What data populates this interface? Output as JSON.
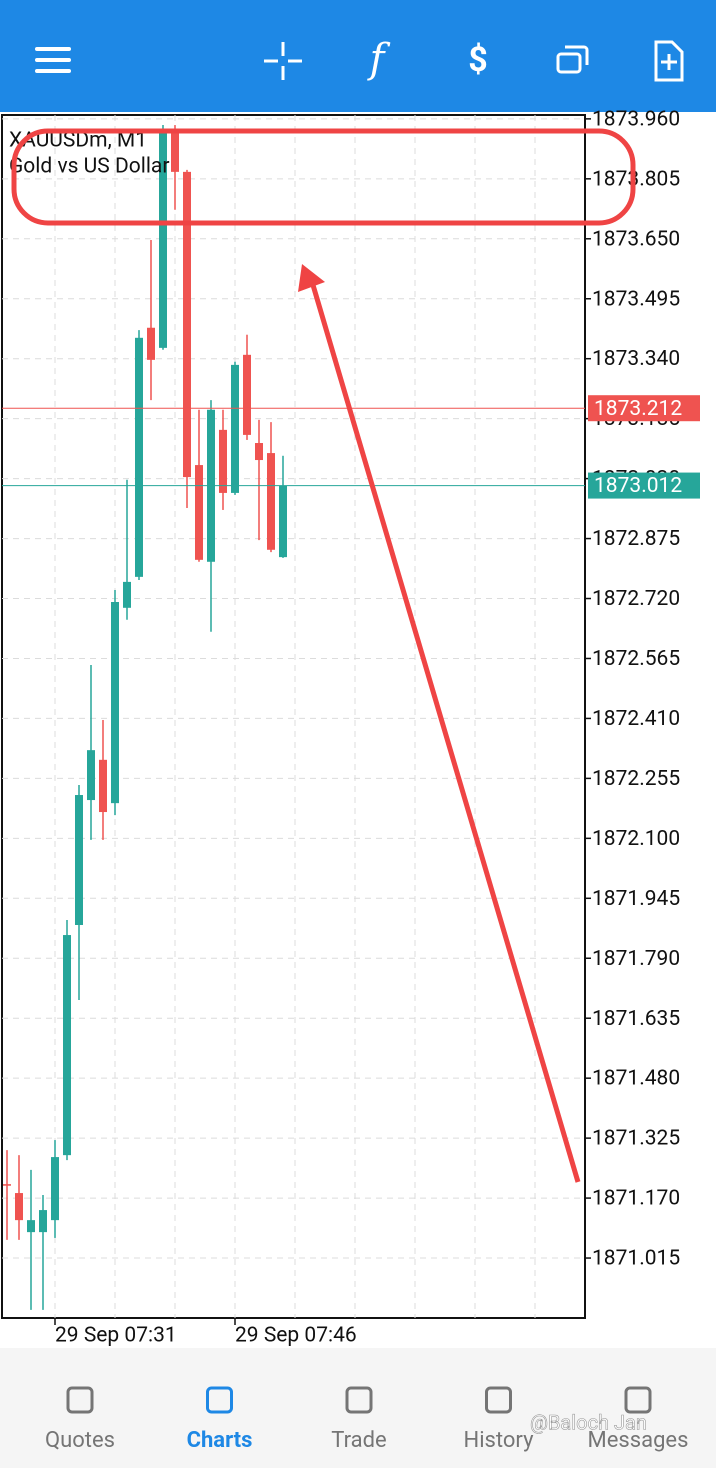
{
  "chart_data": {
    "type": "candlestick",
    "title": "XAUUSDm, M1",
    "subtitle": "Gold vs US Dollar",
    "categories": [
      null,
      null,
      null,
      null,
      "29 Sep 07:31",
      null,
      null,
      null,
      null,
      null,
      null,
      null,
      null,
      null,
      null,
      null,
      null,
      null,
      null,
      "29 Sep 07:46",
      null,
      null,
      null,
      null
    ],
    "open": [
      1871.206,
      1871.183,
      1871.082,
      1871.082,
      1871.113,
      1871.281,
      1871.876,
      1872.199,
      1872.303,
      1872.191,
      1872.696,
      1872.776,
      1873.42,
      1873.368,
      1873.932,
      1873.823,
      1873.065,
      1872.815,
      1873.156,
      1872.993,
      1873.35,
      1873.122,
      1873.096,
      1872.827
    ],
    "high": [
      1871.294,
      1871.281,
      1871.243,
      1871.178,
      1871.32,
      1871.889,
      1872.238,
      1872.548,
      1872.406,
      1872.742,
      1873.027,
      1873.414,
      1873.647,
      1873.944,
      1873.944,
      1873.828,
      1873.208,
      1873.233,
      1873.208,
      1873.332,
      1873.402,
      1873.182,
      1873.176,
      1873.089
    ],
    "low": [
      1871.062,
      1871.062,
      1870.881,
      1870.881,
      1871.067,
      1871.268,
      1871.682,
      1872.096,
      1872.096,
      1872.16,
      1872.665,
      1872.768,
      1873.233,
      1873.363,
      1873.725,
      1872.954,
      1872.815,
      1872.634,
      1872.949,
      1872.988,
      1873.13,
      1872.871,
      1872.84,
      1872.825
    ],
    "close": [
      1871.202,
      1871.113,
      1871.113,
      1871.139,
      1871.276,
      1871.85,
      1872.212,
      1872.328,
      1872.168,
      1872.711,
      1872.763,
      1873.394,
      1873.337,
      1873.932,
      1873.823,
      1873.034,
      1872.82,
      1873.208,
      1872.993,
      1873.324,
      1873.143,
      1873.078,
      1872.846,
      1873.012
    ],
    "up_color": "#26a69a",
    "down_color": "#ef5350",
    "ylim": [
      1870.86,
      1873.97
    ],
    "yticks": [
      {
        "value": 1873.96,
        "label": "1873.960"
      },
      {
        "value": 1873.805,
        "label": "1873.805"
      },
      {
        "value": 1873.65,
        "label": "1873.650"
      },
      {
        "value": 1873.495,
        "label": "1873.495"
      },
      {
        "value": 1873.34,
        "label": "1873.340"
      },
      {
        "value": 1873.185,
        "label": "1873.185"
      },
      {
        "value": 1873.03,
        "label": "1873.030"
      },
      {
        "value": 1872.875,
        "label": "1872.875"
      },
      {
        "value": 1872.72,
        "label": "1872.720"
      },
      {
        "value": 1872.565,
        "label": "1872.565"
      },
      {
        "value": 1872.41,
        "label": "1872.410"
      },
      {
        "value": 1872.255,
        "label": "1872.255"
      },
      {
        "value": 1872.1,
        "label": "1872.100"
      },
      {
        "value": 1871.945,
        "label": "1871.945"
      },
      {
        "value": 1871.79,
        "label": "1871.790"
      },
      {
        "value": 1871.635,
        "label": "1871.635"
      },
      {
        "value": 1871.48,
        "label": "1871.480"
      },
      {
        "value": 1871.325,
        "label": "1871.325"
      },
      {
        "value": 1871.17,
        "label": "1871.170"
      },
      {
        "value": 1871.015,
        "label": "1871.015"
      }
    ],
    "price_lines": [
      {
        "value": 1873.212,
        "color": "#ef5350"
      },
      {
        "value": 1873.012,
        "color": "#26a69a"
      }
    ],
    "grid": true
  },
  "nav": {
    "items": [
      "Quotes",
      "Charts",
      "Trade",
      "History",
      "Messages"
    ],
    "active_index": 1
  },
  "watermark": "@Baloch Jan"
}
